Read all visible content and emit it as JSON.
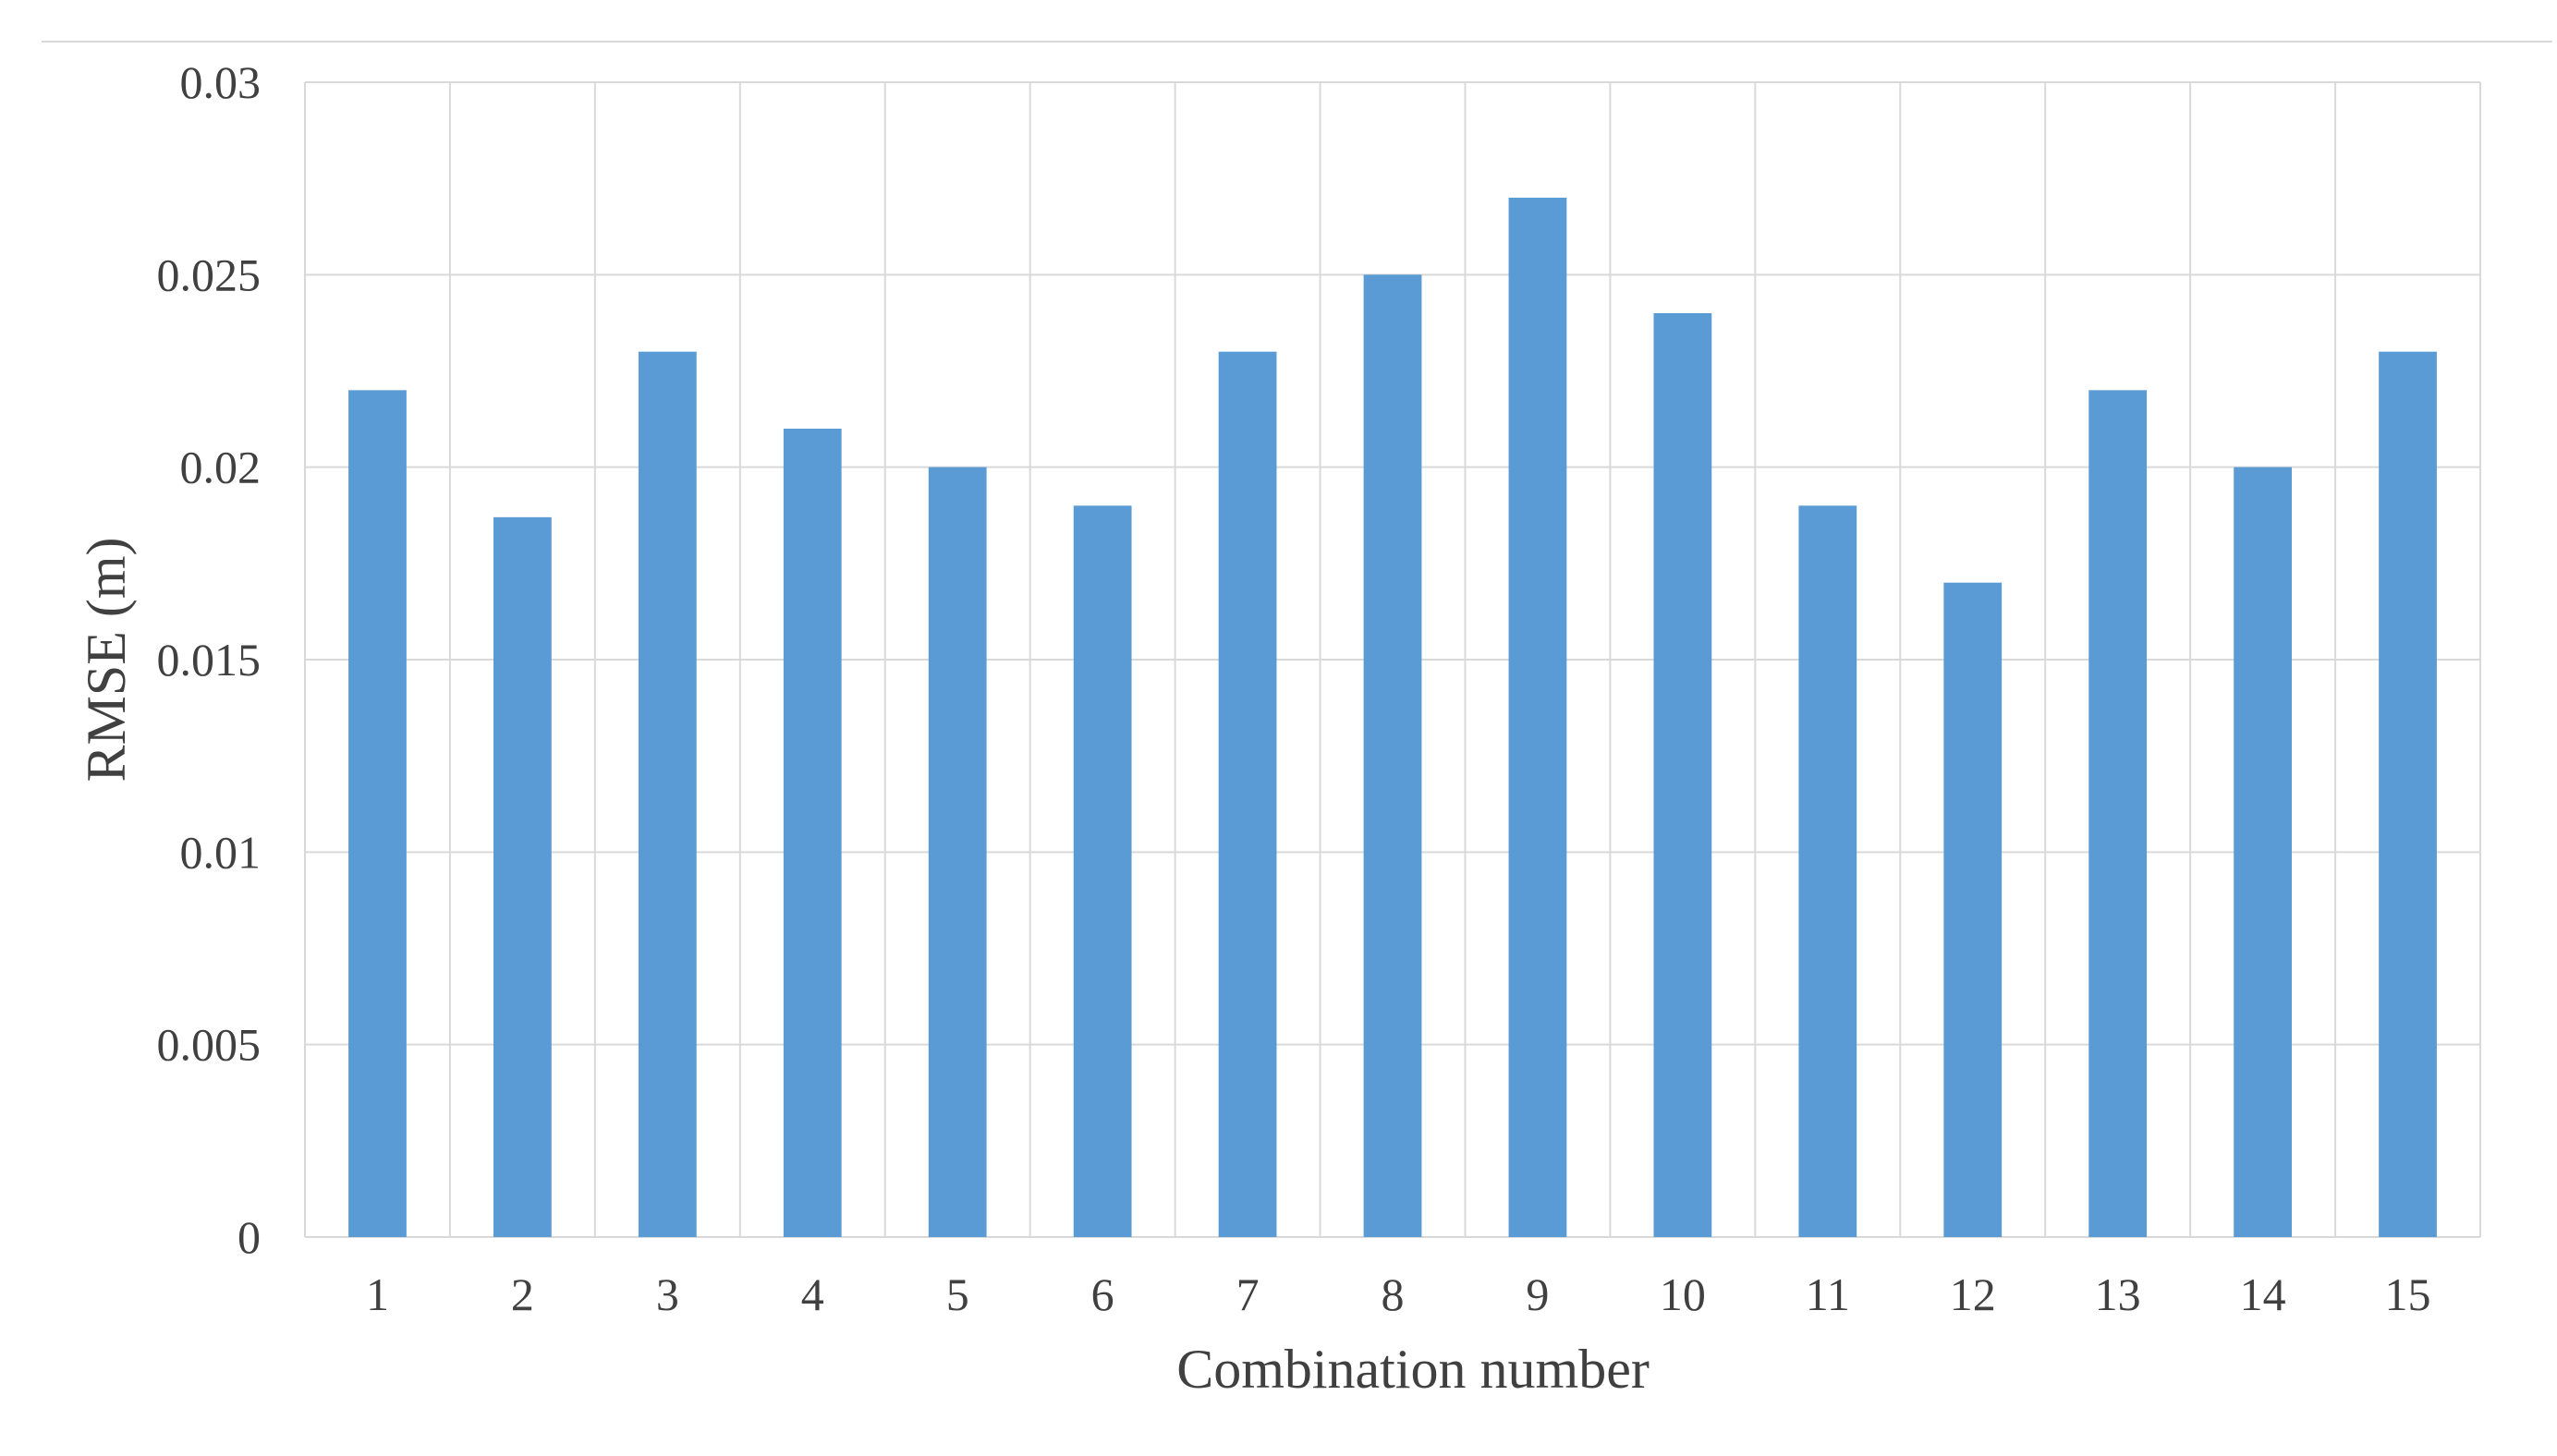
{
  "chart_data": {
    "type": "bar",
    "title": "",
    "xlabel": "Combination number",
    "ylabel": "RMSE (m)",
    "categories": [
      "1",
      "2",
      "3",
      "4",
      "5",
      "6",
      "7",
      "8",
      "9",
      "10",
      "11",
      "12",
      "13",
      "14",
      "15"
    ],
    "series": [
      {
        "values": [
          0.022,
          0.0187,
          0.023,
          0.021,
          0.02,
          0.019,
          0.023,
          0.025,
          0.027,
          0.024,
          0.019,
          0.017,
          0.022,
          0.02,
          0.023
        ]
      }
    ],
    "ylim": [
      0,
      0.03
    ],
    "yticks": [
      "0",
      "0.005",
      "0.01",
      "0.015",
      "0.02",
      "0.025",
      "0.03"
    ],
    "grid": "both",
    "legend": "none",
    "colors": {
      "bar": "#5b9bd5",
      "grid": "#d9d9d9",
      "text": "#404040"
    }
  }
}
